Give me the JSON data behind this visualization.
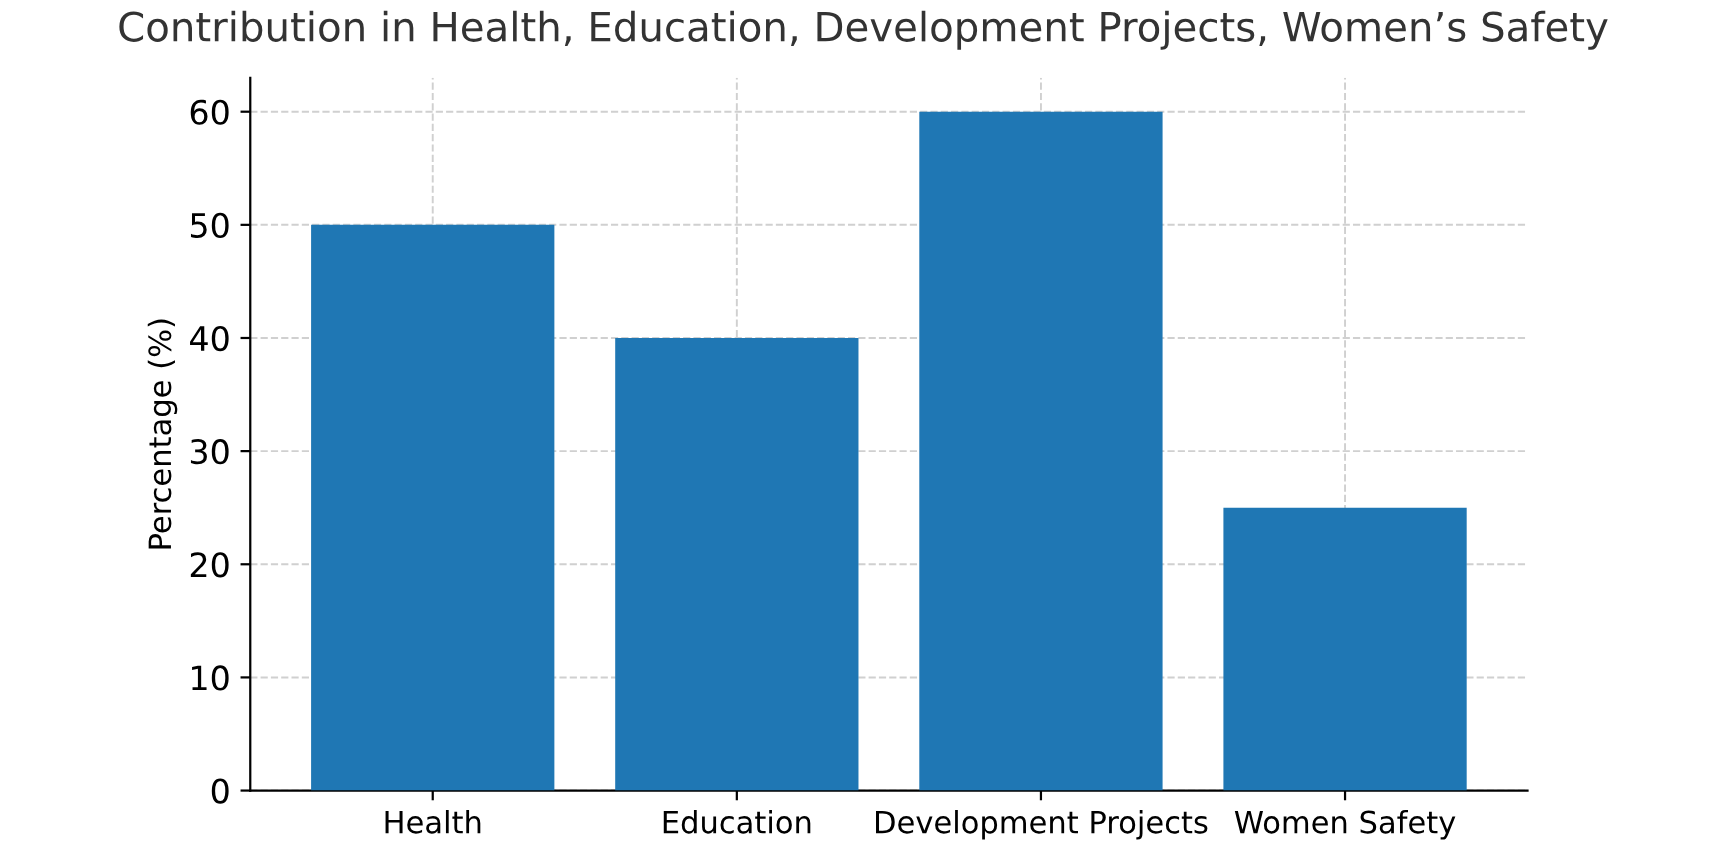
{
  "chart_data": {
    "type": "bar",
    "title": "Contribution in Health, Education, Development Projects, Women’s Safety",
    "ylabel": "Percentage (%)",
    "categories": [
      "Health",
      "Education",
      "Development Projects",
      "Women Safety"
    ],
    "values": [
      50,
      40,
      60,
      25
    ],
    "color": "#1f77b4",
    "ylim": [
      0,
      63
    ],
    "yticks": [
      0,
      10,
      20,
      30,
      40,
      50,
      60
    ],
    "grid": true,
    "line_style": "dashed"
  }
}
